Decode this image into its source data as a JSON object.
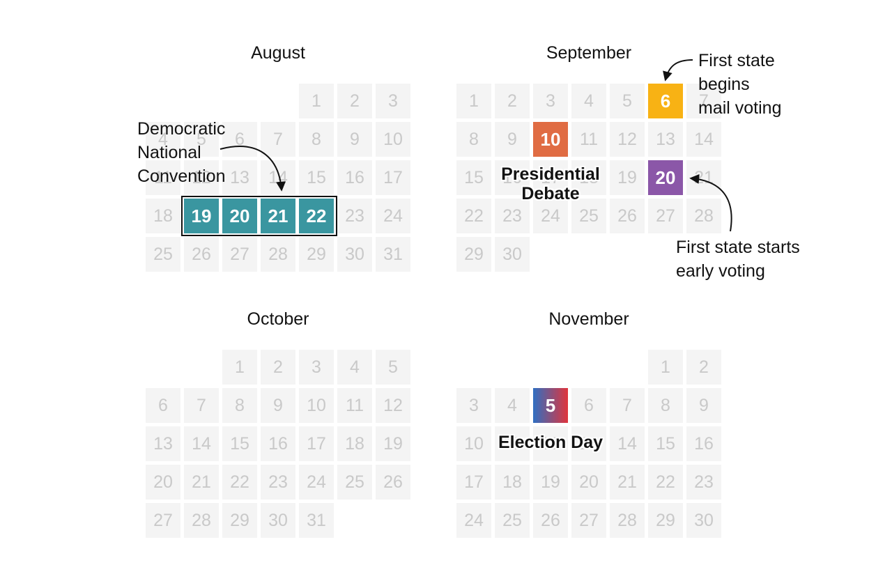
{
  "months": [
    {
      "name": "August",
      "start_col": 4,
      "days": 31,
      "highlights": [
        {
          "day": 19,
          "color": "#3a96a0"
        },
        {
          "day": 20,
          "color": "#3a96a0"
        },
        {
          "day": 21,
          "color": "#3a96a0"
        },
        {
          "day": 22,
          "color": "#3a96a0"
        }
      ]
    },
    {
      "name": "September",
      "start_col": 0,
      "days": 30,
      "highlights": [
        {
          "day": 6,
          "color": "#f8b214"
        },
        {
          "day": 10,
          "color": "#e06c43"
        },
        {
          "day": 20,
          "color": "#8b57a8"
        }
      ]
    },
    {
      "name": "October",
      "start_col": 2,
      "days": 31,
      "highlights": []
    },
    {
      "name": "November",
      "start_col": 5,
      "days": 30,
      "highlights": [
        {
          "day": 5,
          "gradient": [
            "#2f6fc2",
            "#e0343c"
          ]
        }
      ]
    }
  ],
  "annotations": {
    "dnc": [
      "Democratic",
      "National",
      "Convention"
    ],
    "mail_voting": [
      "First state",
      "begins",
      "mail voting"
    ],
    "debate": [
      "Presidential",
      "Debate"
    ],
    "early_voting": [
      "First state starts",
      "early voting"
    ],
    "election_day": "Election Day"
  },
  "colors": {
    "cell_bg": "#f4f4f4",
    "cell_text": "#c9c9c9",
    "convention": "#3a96a0",
    "mail_voting": "#f8b214",
    "debate": "#e06c43",
    "early_voting": "#8b57a8",
    "election_blue": "#2f6fc2",
    "election_red": "#e0343c"
  }
}
